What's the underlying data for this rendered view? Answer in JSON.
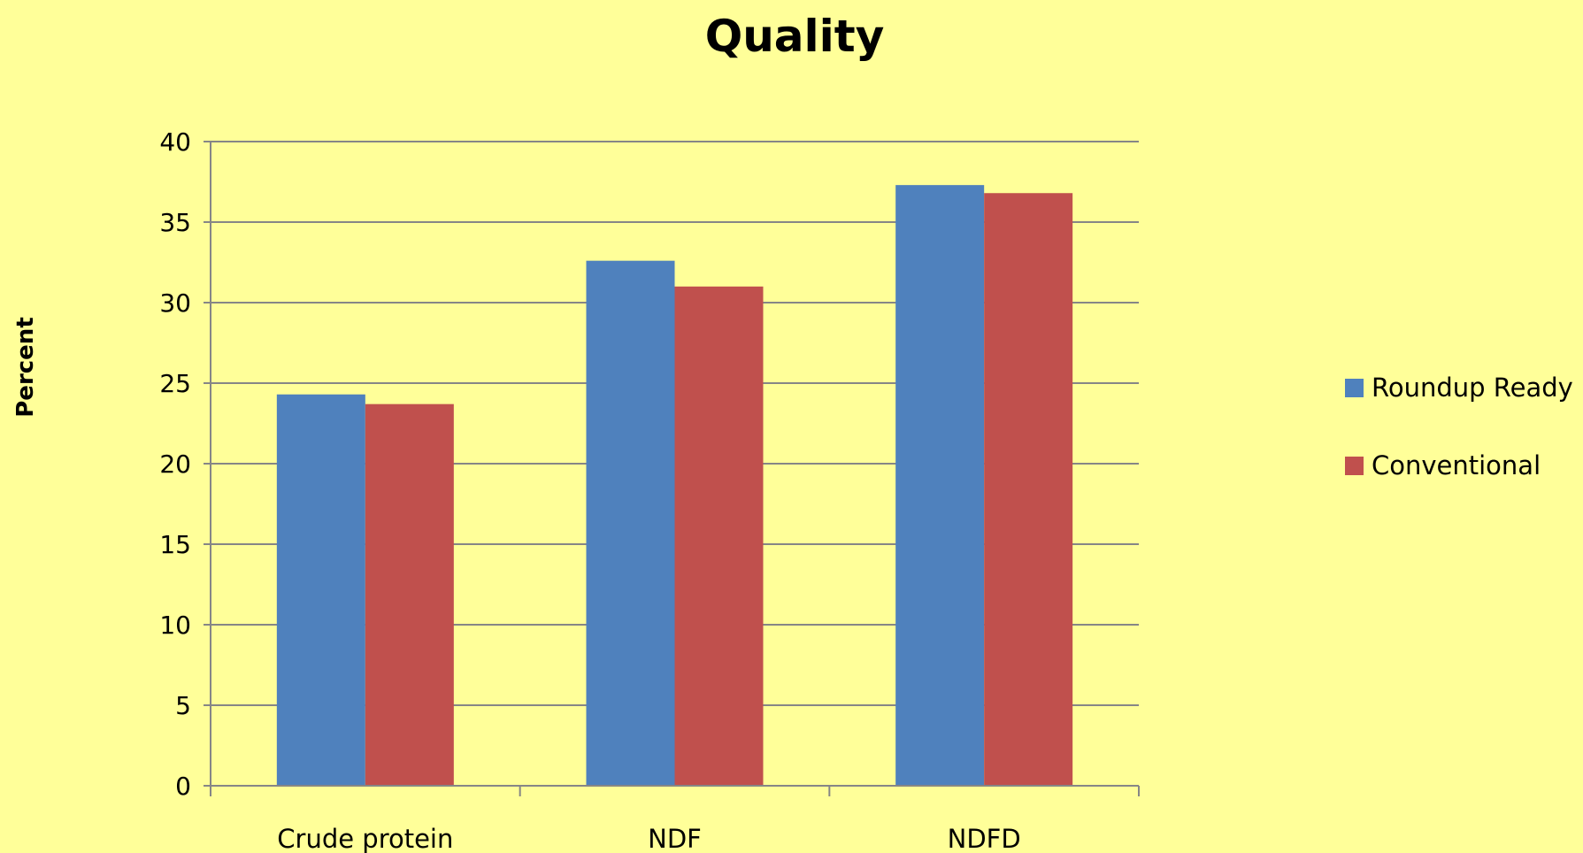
{
  "chart_data": {
    "type": "bar",
    "title": "Quality",
    "xlabel": "",
    "ylabel": "Percent",
    "categories": [
      "Crude protein",
      "NDF",
      "NDFD"
    ],
    "series": [
      {
        "name": "Roundup Ready",
        "color": "#4F81BD",
        "values": [
          24.3,
          32.6,
          37.3
        ]
      },
      {
        "name": "Conventional",
        "color": "#C0504D",
        "values": [
          23.7,
          31.0,
          36.8
        ]
      }
    ],
    "ylim": [
      0,
      40
    ],
    "yticks": [
      0,
      5,
      10,
      15,
      20,
      25,
      30,
      35,
      40
    ],
    "grid": true,
    "legend_position": "right"
  }
}
